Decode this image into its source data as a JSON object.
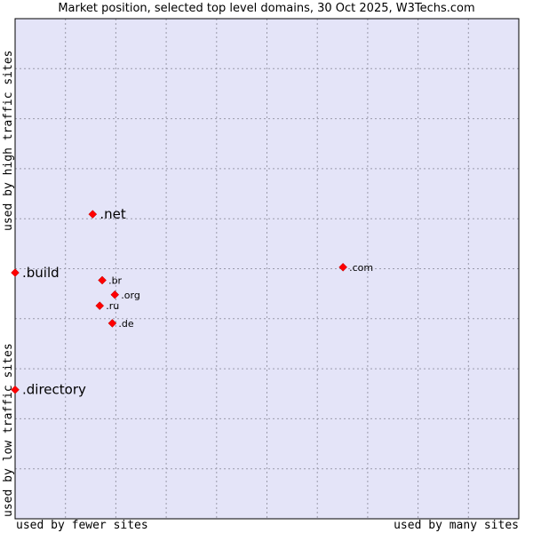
{
  "chart_data": {
    "type": "scatter",
    "title": "Market position, selected top level domains, 30 Oct 2025, W3Techs.com",
    "xlabel_left": "used by fewer sites",
    "xlabel_right": "used by many sites",
    "ylabel_top": "used by high traffic sites",
    "ylabel_bottom": "used by low traffic sites",
    "grid": true,
    "xlim": [
      0,
      100
    ],
    "ylim": [
      0,
      100
    ],
    "marker_color": "#ff0000",
    "plot_background": "#e4e4f8",
    "points": [
      {
        "label": ".net",
        "x": 15.4,
        "y": 60.9,
        "emphasis": true
      },
      {
        "label": ".build",
        "x": 0.0,
        "y": 49.2,
        "emphasis": true
      },
      {
        "label": ".directory",
        "x": 0.0,
        "y": 25.8,
        "emphasis": true
      },
      {
        "label": ".com",
        "x": 65.1,
        "y": 50.3,
        "emphasis": false
      },
      {
        "label": ".br",
        "x": 17.3,
        "y": 47.7,
        "emphasis": false
      },
      {
        "label": ".org",
        "x": 19.8,
        "y": 44.8,
        "emphasis": false
      },
      {
        "label": ".ru",
        "x": 16.8,
        "y": 42.6,
        "emphasis": false
      },
      {
        "label": ".de",
        "x": 19.3,
        "y": 39.1,
        "emphasis": false
      }
    ]
  }
}
